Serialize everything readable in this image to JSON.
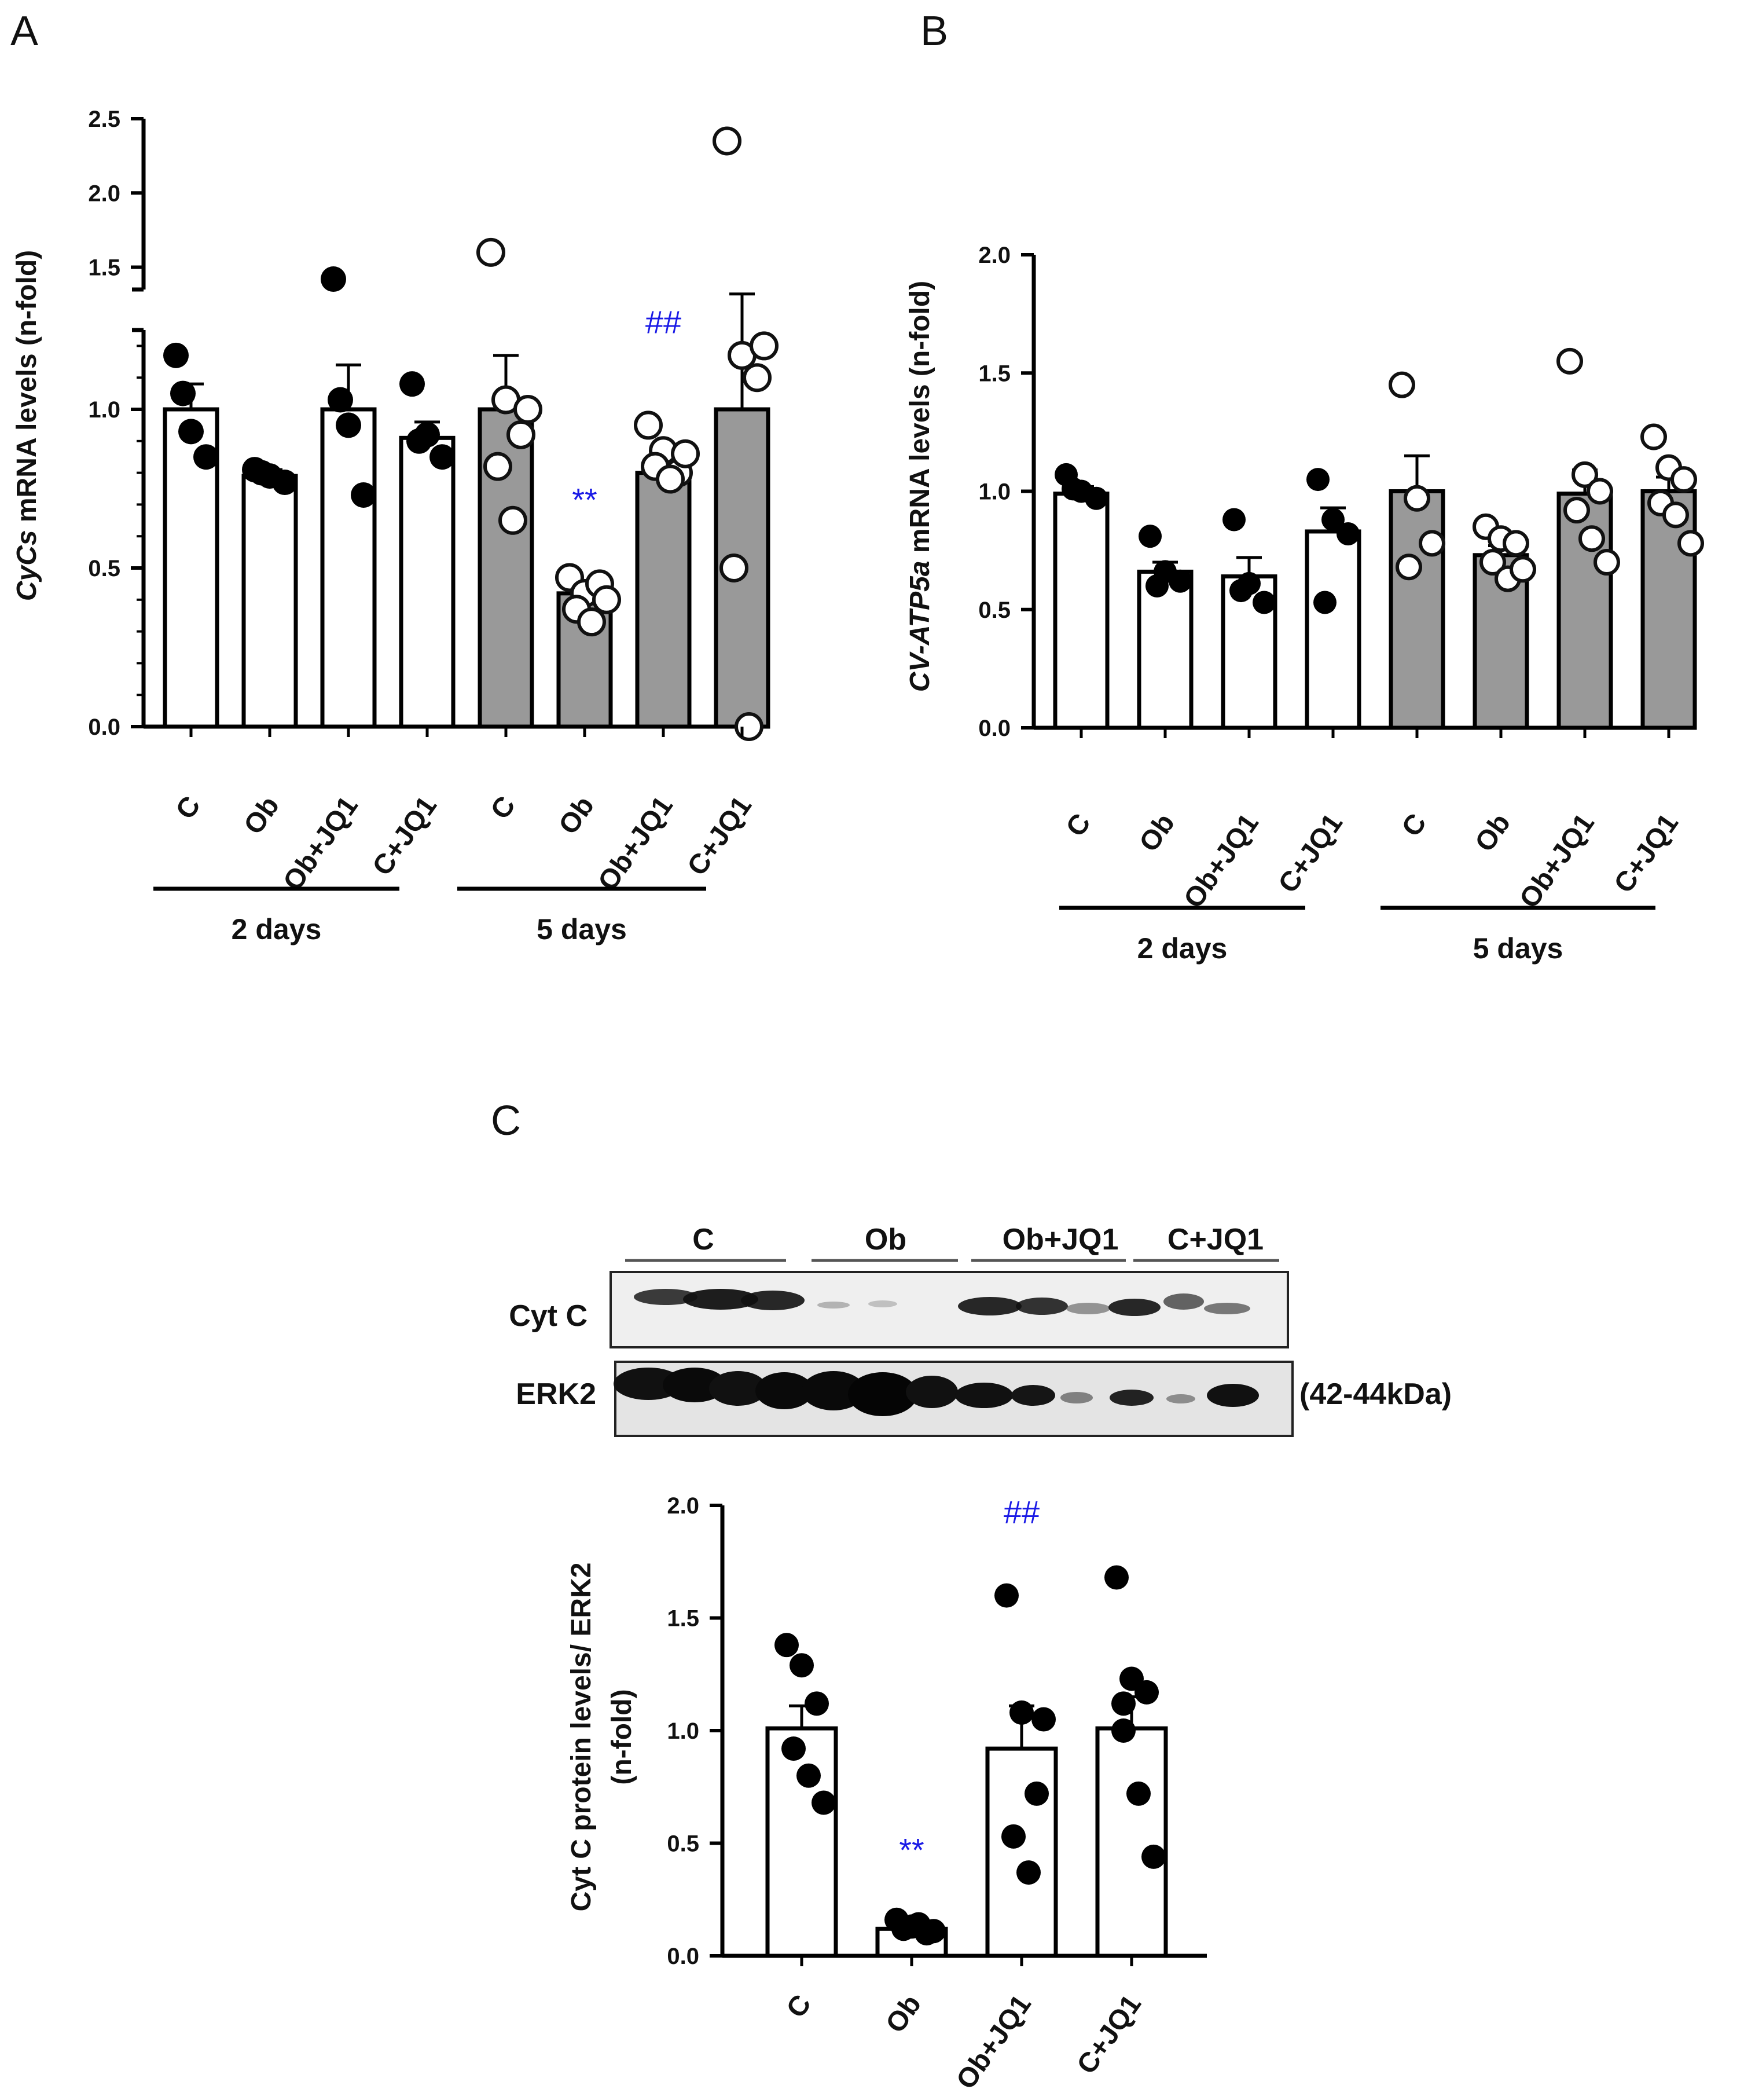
{
  "panels": {
    "A": {
      "letter": "A"
    },
    "B": {
      "letter": "B"
    },
    "C": {
      "letter": "C"
    }
  },
  "blot": {
    "lanes": [
      "C",
      "Ob",
      "Ob+JQ1",
      "C+JQ1"
    ],
    "rows": [
      "Cyt C",
      "ERK2"
    ],
    "erk2_size": "(42-44kDa)"
  },
  "chart_data": [
    {
      "id": "A",
      "type": "bar",
      "ylabel_italic": "CyCs",
      "ylabel_rest": " mRNA levels  (n-fold)",
      "axis_break": true,
      "lower_ylim": [
        0,
        1.25
      ],
      "upper_ylim": [
        1.35,
        2.5
      ],
      "lower_ticks": [
        {
          "v": 0,
          "label": "0.0"
        },
        {
          "v": 0.5,
          "label": "0.5"
        },
        {
          "v": 1.0,
          "label": "1.0"
        }
      ],
      "upper_ticks": [
        {
          "v": 1.5,
          "label": "1.5"
        },
        {
          "v": 2.0,
          "label": "2.0"
        },
        {
          "v": 2.5,
          "label": "2.5"
        }
      ],
      "groups": [
        "2 days",
        "5 days"
      ],
      "categories": [
        "C",
        "Ob",
        "Ob+JQ1",
        "C+JQ1",
        "C",
        "Ob",
        "Ob+JQ1",
        "C+JQ1"
      ],
      "bars": [
        {
          "mean": 1.0,
          "sem": 0.08,
          "fill": "#ffffff",
          "open": false,
          "points": [
            1.17,
            0.93,
            0.85,
            1.05
          ]
        },
        {
          "mean": 0.79,
          "sem": 0.02,
          "fill": "#ffffff",
          "open": false,
          "points": [
            0.81,
            0.79,
            0.77,
            0.8
          ]
        },
        {
          "mean": 1.0,
          "sem": 0.14,
          "fill": "#ffffff",
          "open": false,
          "points": [
            1.42,
            0.95,
            0.73,
            1.03
          ]
        },
        {
          "mean": 0.91,
          "sem": 0.05,
          "fill": "#ffffff",
          "open": false,
          "points": [
            1.08,
            0.92,
            0.85,
            0.9
          ]
        },
        {
          "mean": 1.0,
          "sem": 0.17,
          "fill": "#999999",
          "open": true,
          "points": [
            1.6,
            1.03,
            0.92,
            0.82,
            0.65,
            1.0
          ]
        },
        {
          "mean": 0.42,
          "sem": 0.03,
          "fill": "#999999",
          "open": true,
          "points": [
            0.47,
            0.42,
            0.45,
            0.37,
            0.33,
            0.4
          ]
        },
        {
          "mean": 0.8,
          "sem": 0.04,
          "fill": "#999999",
          "open": true,
          "points": [
            0.95,
            0.87,
            0.8,
            0.82,
            0.78,
            0.86
          ]
        },
        {
          "mean": 1.0,
          "sem": 0.32,
          "fill": "#999999",
          "open": true,
          "points": [
            2.35,
            1.17,
            1.1,
            0.5,
            0.0,
            1.2
          ]
        }
      ],
      "annotations": [
        {
          "bar": 5,
          "text": "**",
          "at": 0.68
        },
        {
          "bar": 6,
          "text": "##",
          "at": 1.24
        }
      ]
    },
    {
      "id": "B",
      "type": "bar",
      "ylabel_italic": "CV-ATP5a",
      "ylabel_rest": " mRNA levels  (n-fold)",
      "ylim": [
        0,
        2.0
      ],
      "ticks": [
        {
          "v": 0,
          "label": "0.0"
        },
        {
          "v": 0.5,
          "label": "0.5"
        },
        {
          "v": 1.0,
          "label": "1.0"
        },
        {
          "v": 1.5,
          "label": "1.5"
        },
        {
          "v": 2.0,
          "label": "2.0"
        }
      ],
      "groups": [
        "2 days",
        "5 days"
      ],
      "categories": [
        "C",
        "Ob",
        "Ob+JQ1",
        "C+JQ1",
        "C",
        "Ob",
        "Ob+JQ1",
        "C+JQ1"
      ],
      "bars": [
        {
          "mean": 0.99,
          "sem": 0.03,
          "fill": "#ffffff",
          "open": false,
          "points": [
            1.07,
            1.0,
            0.97,
            1.01
          ]
        },
        {
          "mean": 0.66,
          "sem": 0.04,
          "fill": "#ffffff",
          "open": false,
          "points": [
            0.81,
            0.66,
            0.62,
            0.6
          ]
        },
        {
          "mean": 0.64,
          "sem": 0.08,
          "fill": "#ffffff",
          "open": false,
          "points": [
            0.88,
            0.61,
            0.53,
            0.58
          ]
        },
        {
          "mean": 0.83,
          "sem": 0.1,
          "fill": "#ffffff",
          "open": false,
          "points": [
            1.05,
            0.88,
            0.82,
            0.53
          ]
        },
        {
          "mean": 1.0,
          "sem": 0.15,
          "fill": "#999999",
          "open": true,
          "points": [
            1.45,
            0.97,
            0.78,
            0.68
          ]
        },
        {
          "mean": 0.73,
          "sem": 0.04,
          "fill": "#999999",
          "open": true,
          "points": [
            0.85,
            0.8,
            0.78,
            0.7,
            0.63,
            0.67
          ]
        },
        {
          "mean": 0.99,
          "sem": 0.1,
          "fill": "#999999",
          "open": true,
          "points": [
            1.55,
            1.07,
            1.0,
            0.92,
            0.8,
            0.7
          ]
        },
        {
          "mean": 1.0,
          "sem": 0.06,
          "fill": "#999999",
          "open": true,
          "points": [
            1.23,
            1.1,
            1.05,
            0.95,
            0.9,
            0.78
          ]
        }
      ]
    },
    {
      "id": "C",
      "type": "bar",
      "ylabel_lines": [
        "Cyt C protein levels/ ERK2",
        "(n-fold)"
      ],
      "ylim": [
        0,
        2.0
      ],
      "ticks": [
        {
          "v": 0,
          "label": "0.0"
        },
        {
          "v": 0.5,
          "label": "0.5"
        },
        {
          "v": 1.0,
          "label": "1.0"
        },
        {
          "v": 1.5,
          "label": "1.5"
        },
        {
          "v": 2.0,
          "label": "2.0"
        }
      ],
      "categories": [
        "C",
        "Ob",
        "Ob+JQ1",
        "C+JQ1"
      ],
      "bars": [
        {
          "mean": 1.01,
          "sem": 0.1,
          "fill": "#ffffff",
          "open": false,
          "points": [
            1.38,
            1.29,
            1.12,
            0.92,
            0.8,
            0.68
          ]
        },
        {
          "mean": 0.12,
          "sem": 0.02,
          "fill": "#ffffff",
          "open": false,
          "points": [
            0.16,
            0.13,
            0.1,
            0.12,
            0.14,
            0.11
          ]
        },
        {
          "mean": 0.92,
          "sem": 0.19,
          "fill": "#ffffff",
          "open": false,
          "points": [
            1.6,
            1.08,
            0.72,
            0.53,
            0.37,
            1.05
          ]
        },
        {
          "mean": 1.01,
          "sem": 0.14,
          "fill": "#ffffff",
          "open": false,
          "points": [
            1.68,
            1.23,
            1.17,
            1.0,
            0.72,
            0.44,
            1.12
          ]
        }
      ],
      "annotations": [
        {
          "bar": 1,
          "text": "**",
          "at": 0.42
        },
        {
          "bar": 2,
          "text": "##",
          "at": 1.92
        }
      ]
    }
  ]
}
